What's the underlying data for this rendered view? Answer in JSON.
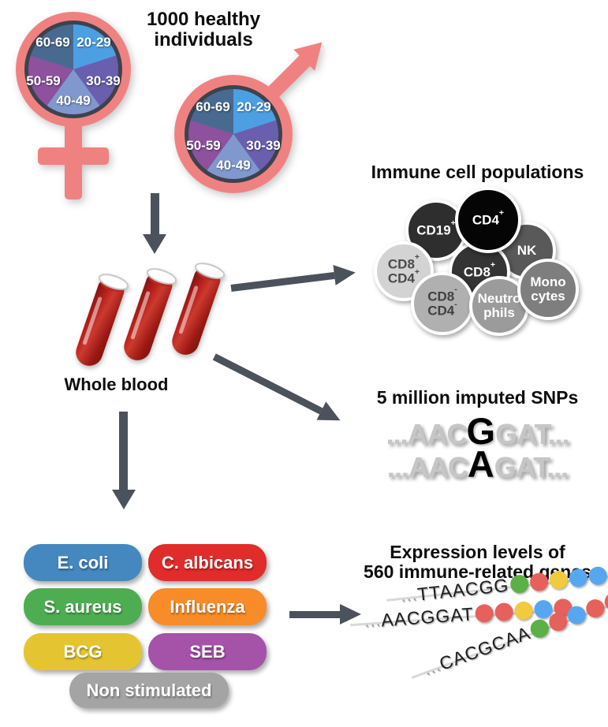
{
  "header": {
    "title": "1000 healthy individuals"
  },
  "demographics": {
    "age_groups": [
      "20-29",
      "30-39",
      "40-49",
      "50-59",
      "60-69"
    ],
    "slice_colors": [
      "#4C9FE3",
      "#6A5FAE",
      "#8098CE",
      "#8D519D",
      "#496A90"
    ],
    "symbol_color": "#EF8281"
  },
  "whole_blood": {
    "label": "Whole blood",
    "tube_color": "#B5201F"
  },
  "immune_cells": {
    "title": "Immune cell populations",
    "cells": [
      {
        "name": "cd19-pos",
        "lines": [
          "CD19+"
        ],
        "bg": "#2E2E2E",
        "fg": "#FFFFFF"
      },
      {
        "name": "nk",
        "lines": [
          "NK"
        ],
        "bg": "#595959",
        "fg": "#FFFFFF"
      },
      {
        "name": "cd8-pos",
        "lines": [
          "CD8+"
        ],
        "bg": "#343434",
        "fg": "#FFFFFF"
      },
      {
        "name": "cd4-pos",
        "lines": [
          "CD4+"
        ],
        "bg": "#050505",
        "fg": "#FFFFFF"
      },
      {
        "name": "cd8-pos-cd4-pos",
        "lines": [
          "CD8+",
          "CD4+"
        ],
        "bg": "#D3D3D3",
        "fg": "#4A4A4A"
      },
      {
        "name": "cd8-neg-cd4-neg",
        "lines": [
          "CD8-",
          "CD4-"
        ],
        "bg": "#B0B0B0",
        "fg": "#404040"
      },
      {
        "name": "neutrophils",
        "lines": [
          "Neutro",
          "phils"
        ],
        "bg": "#9B9B9B",
        "fg": "#FFFFFF"
      },
      {
        "name": "monocytes",
        "lines": [
          "Mono",
          "cytes"
        ],
        "bg": "#7E7E7E",
        "fg": "#FFFFFF"
      }
    ]
  },
  "snps": {
    "title": "5 million imputed SNPs",
    "sequences": [
      {
        "pre": "...AAC",
        "variant": "G",
        "post": "GAT..."
      },
      {
        "pre": "...AAC",
        "variant": "A",
        "post": "GAT..."
      }
    ]
  },
  "stimulations": {
    "items": [
      {
        "label": "E. coli",
        "color": "#4587BF"
      },
      {
        "label": "C. albicans",
        "color": "#E02C2A"
      },
      {
        "label": "S. aureus",
        "color": "#4DAE51"
      },
      {
        "label": "Influenza",
        "color": "#F78C28"
      },
      {
        "label": "BCG",
        "color": "#E4C531"
      },
      {
        "label": "SEB",
        "color": "#A453A9"
      },
      {
        "label": "Non stimulated",
        "color": "#A4A4A4"
      }
    ]
  },
  "expression": {
    "title_line1": "Expression levels of",
    "title_line2": "560 immune-related genes",
    "dot_palette": {
      "green": "#5BB046",
      "red": "#E6615C",
      "yellow": "#F1CA3D",
      "blue": "#57A7F0"
    },
    "strands": [
      {
        "prefix": "...",
        "seq": "TTAACGG",
        "dots": [
          "green",
          "red",
          "yellow",
          "blue",
          "blue"
        ]
      },
      {
        "prefix": "...",
        "seq": "AACGGAT",
        "dots": [
          "red",
          "red",
          "yellow",
          "blue",
          "red"
        ]
      },
      {
        "prefix": "...",
        "seq": "CACGCAA",
        "dots": [
          "green",
          "red",
          "blue",
          "red",
          "red"
        ]
      }
    ]
  }
}
